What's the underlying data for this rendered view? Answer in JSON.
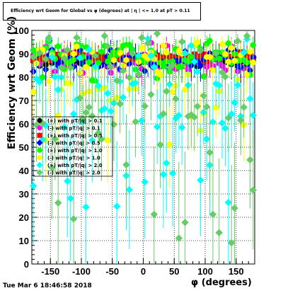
{
  "chart_data": {
    "type": "scatter",
    "title": "Efficiency wrt Geom for Global vs φ (degrees) at | η | <= 1.0 at pT > 0.11",
    "xlabel": "φ (degrees)",
    "ylabel": "Efficiency wrt Geom (%)",
    "xlim": [
      -180,
      180
    ],
    "ylim": [
      0,
      100
    ],
    "x_ticks": [
      -150,
      -100,
      -50,
      0,
      50,
      100,
      150
    ],
    "y_ticks": [
      0,
      10,
      20,
      30,
      40,
      50,
      60,
      70,
      80,
      90,
      100
    ],
    "grid": true,
    "legend_position": "left-middle",
    "series": [
      {
        "name": "(+) with pT/|q| > 0.1",
        "color": "#000000",
        "marker": "circle",
        "band": [
          84,
          90
        ],
        "bias": 87.0
      },
      {
        "name": "(-) with pT/|q| > 0.1",
        "color": "#ff00ff",
        "marker": "circle",
        "band": [
          80,
          95
        ],
        "bias": 86.0
      },
      {
        "name": "(+) with pT/|q| > 0.5",
        "color": "#ff0000",
        "marker": "square",
        "band": [
          86,
          91
        ],
        "bias": 88.5
      },
      {
        "name": "(-) with pT/|q| > 0.5",
        "color": "#0000ff",
        "marker": "diamond",
        "band": [
          82,
          92
        ],
        "bias": 87.0
      },
      {
        "name": "(+) with pT/|q| > 1.0",
        "color": "#00ff00",
        "marker": "circle",
        "band": [
          78,
          96
        ],
        "bias": 90.0
      },
      {
        "name": "(-) with pT/|q| > 1.0",
        "color": "#ffff00",
        "marker": "circle",
        "band": [
          50,
          95
        ],
        "bias": 82.0
      },
      {
        "name": "(+) with pT/|q| > 2.0",
        "color": "#00ffff",
        "marker": "diamond",
        "band": [
          20,
          100
        ],
        "bias": 78.0
      },
      {
        "name": "(-) with pT/|q| > 2.0",
        "color": "#66cc66",
        "marker": "diamond",
        "band": [
          8,
          100
        ],
        "bias": 80.0
      }
    ],
    "n_points_per_series": 72,
    "x_range_points": [
      -177.5,
      177.5
    ]
  },
  "footer": {
    "timestamp": "Tue Mar  6 18:46:58 2018"
  }
}
